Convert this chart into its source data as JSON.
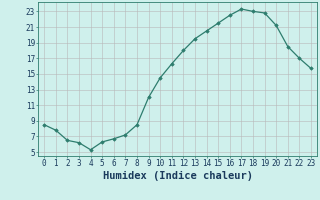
{
  "x": [
    0,
    1,
    2,
    3,
    4,
    5,
    6,
    7,
    8,
    9,
    10,
    11,
    12,
    13,
    14,
    15,
    16,
    17,
    18,
    19,
    20,
    21,
    22,
    23
  ],
  "y": [
    8.5,
    7.8,
    6.5,
    6.2,
    5.3,
    6.3,
    6.7,
    7.2,
    8.5,
    12.0,
    14.5,
    16.3,
    18.0,
    19.5,
    20.5,
    21.5,
    22.5,
    23.3,
    23.0,
    22.8,
    21.2,
    18.5,
    17.0,
    15.7
  ],
  "xlabel": "Humidex (Indice chaleur)",
  "xlim": [
    -0.5,
    23.5
  ],
  "ylim": [
    4.5,
    24.2
  ],
  "yticks": [
    5,
    7,
    9,
    11,
    13,
    15,
    17,
    19,
    21,
    23
  ],
  "xticks": [
    0,
    1,
    2,
    3,
    4,
    5,
    6,
    7,
    8,
    9,
    10,
    11,
    12,
    13,
    14,
    15,
    16,
    17,
    18,
    19,
    20,
    21,
    22,
    23
  ],
  "line_color": "#2e7d6e",
  "marker": "D",
  "marker_size": 1.8,
  "bg_color": "#cff0ec",
  "grid_color": "#b8b8b8",
  "spine_color": "#2e7d6e",
  "label_color": "#1a3a5c",
  "tick_label_fontsize": 5.5,
  "xlabel_fontsize": 7.5
}
